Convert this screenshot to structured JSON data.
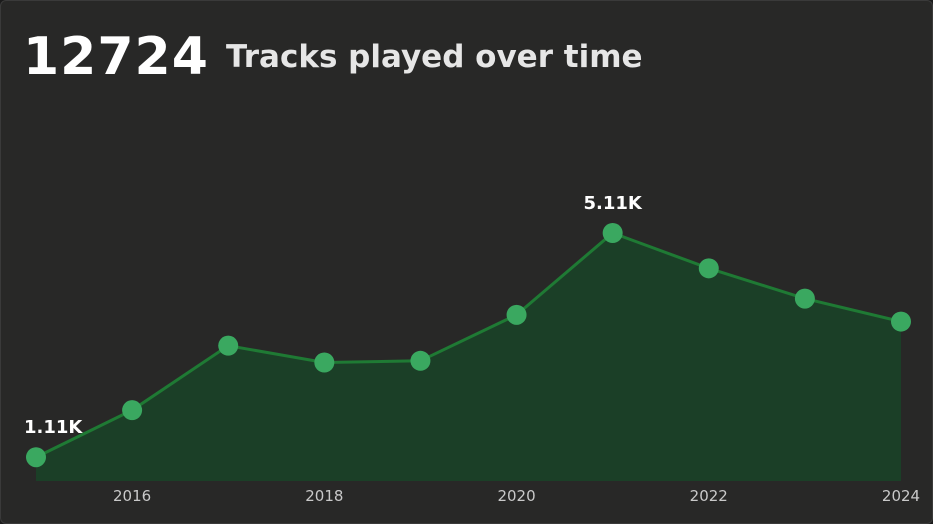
{
  "header": {
    "total": "12724",
    "title": "Tracks played over time"
  },
  "colors": {
    "line": "#1f7a34",
    "area": "#1b3f27",
    "marker": "#3aa860",
    "background": "#282827"
  },
  "chart_data": {
    "type": "area",
    "title": "Tracks played over time",
    "x": [
      2015,
      2016,
      2017,
      2018,
      2019,
      2020,
      2021,
      2022,
      2023,
      2024
    ],
    "values": [
      1110,
      1950,
      3100,
      2800,
      2830,
      3650,
      5110,
      4480,
      3940,
      3530
    ],
    "x_ticks": [
      "2016",
      "2018",
      "2020",
      "2022",
      "2024"
    ],
    "data_labels": [
      {
        "index": 0,
        "text": "1.11K"
      },
      {
        "index": 6,
        "text": "5.11K"
      }
    ],
    "xlim": [
      2015,
      2024
    ],
    "ylim": [
      900,
      5110
    ],
    "grid": false,
    "legend": "none"
  }
}
